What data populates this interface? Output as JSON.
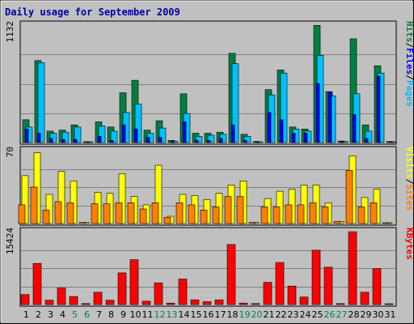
{
  "chart_data": {
    "type": "bar",
    "title": "Daily usage for September 2009",
    "categories": [
      "1",
      "2",
      "3",
      "4",
      "5",
      "6",
      "7",
      "8",
      "9",
      "10",
      "11",
      "12",
      "13",
      "14",
      "15",
      "16",
      "17",
      "18",
      "19",
      "20",
      "21",
      "22",
      "23",
      "24",
      "25",
      "26",
      "27",
      "28",
      "29",
      "30",
      "31"
    ],
    "weekend_days": [
      "5",
      "6",
      "12",
      "13",
      "19",
      "20",
      "26",
      "27"
    ],
    "grid": true,
    "panels": [
      {
        "id": "hits",
        "ymax_label": "1132",
        "ylim": [
          0,
          1132
        ],
        "legend": [
          "Pages",
          "Files",
          "Hits"
        ],
        "series": [
          {
            "name": "Hits",
            "color": "#008040",
            "values": [
              220,
              790,
              110,
              120,
              170,
              5,
              200,
              150,
              480,
              600,
              120,
              210,
              20,
              470,
              90,
              90,
              100,
              860,
              80,
              10,
              510,
              700,
              150,
              130,
              1130,
              490,
              15,
              1000,
              170,
              740,
              10
            ]
          },
          {
            "name": "Files",
            "color": "#00c0ff",
            "values": [
              150,
              770,
              90,
              100,
              150,
              0,
              160,
              110,
              290,
              370,
              90,
              140,
              10,
              280,
              60,
              70,
              80,
              760,
              60,
              0,
              460,
              670,
              130,
              110,
              840,
              450,
              10,
              470,
              110,
              670,
              0
            ]
          },
          {
            "name": "Pages",
            "color": "#0000ff",
            "values": [
              130,
              90,
              40,
              30,
              30,
              0,
              60,
              20,
              170,
              130,
              50,
              50,
              10,
              200,
              20,
              20,
              40,
              170,
              20,
              0,
              290,
              220,
              90,
              90,
              570,
              490,
              10,
              270,
              40,
              640,
              0
            ]
          }
        ]
      },
      {
        "id": "visits",
        "ymax_label": "70",
        "ylim": [
          0,
          70
        ],
        "legend": [
          "Sites",
          "Visits"
        ],
        "series": [
          {
            "name": "Visits",
            "color": "#ffff00",
            "values": [
              46,
              68,
              28,
              50,
              41,
              1,
              30,
              29,
              48,
              26,
              18,
              56,
              7,
              28,
              27,
              23,
              29,
              37,
              41,
              1,
              24,
              31,
              33,
              37,
              37,
              20,
              2,
              65,
              25,
              33,
              0
            ]
          },
          {
            "name": "Sites",
            "color": "#ff8000",
            "values": [
              18,
              35,
              13,
              21,
              20,
              1,
              19,
              19,
              20,
              20,
              14,
              20,
              6,
              20,
              18,
              13,
              16,
              26,
              26,
              1,
              16,
              16,
              18,
              18,
              20,
              16,
              2,
              51,
              16,
              20,
              0
            ]
          }
        ]
      },
      {
        "id": "kbytes",
        "ymax_label": "15424",
        "ylim": [
          0,
          15424
        ],
        "legend": [
          "KBytes"
        ],
        "series": [
          {
            "name": "KBytes",
            "color": "#ff0000",
            "values": [
              2100,
              8700,
              900,
              3500,
              1700,
              200,
              2600,
              900,
              6700,
              9500,
              700,
              4600,
              300,
              5400,
              1000,
              600,
              1000,
              12700,
              300,
              200,
              4700,
              8900,
              3900,
              1600,
              11500,
              7900,
              200,
              15400,
              2600,
              7600,
              100
            ]
          }
        ]
      }
    ]
  }
}
